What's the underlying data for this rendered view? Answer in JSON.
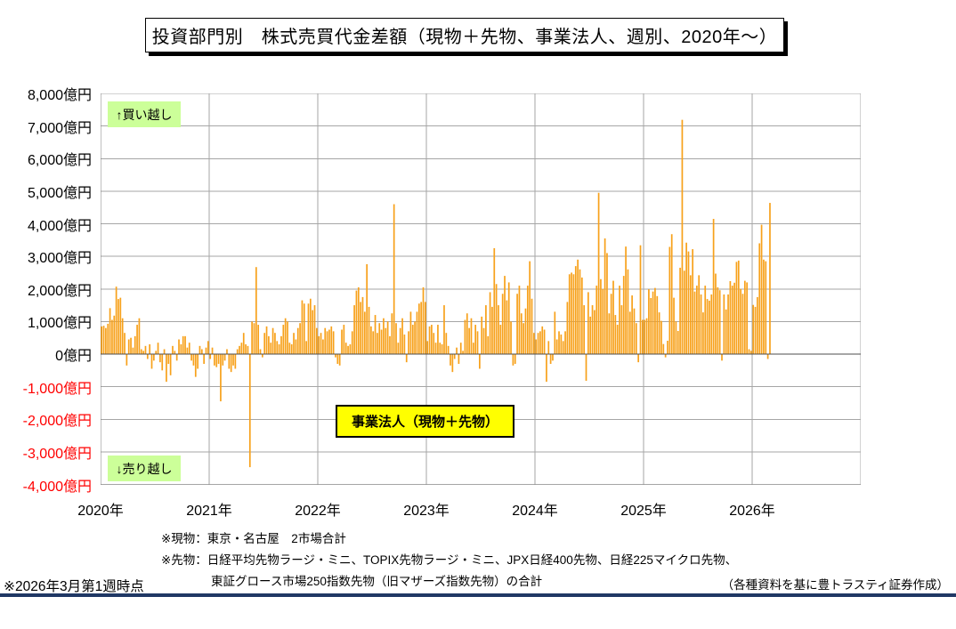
{
  "title": "投資部門別　株式売買代金差額（現物＋先物、事業法人、週別、2020年～）",
  "annotations": {
    "buy_over": "↑買い越し",
    "sell_over": "↓売り越し",
    "series_box": "事業法人（現物＋先物）"
  },
  "footnotes": {
    "line1": "※現物：東京・名古屋　2市場合計",
    "line2": "※先物：日経平均先物ラージ・ミニ、TOPIX先物ラージ・ミニ、JPX日経400先物、日経225マイクロ先物、",
    "line3": "東証グロース市場250指数先物（旧マザーズ指数先物）の合計"
  },
  "footer": {
    "as_of": "※2026年3月第1週時点",
    "credit": "（各種資料を基に豊トラスティ証券作成）"
  },
  "colors": {
    "bar": "#F7A11B",
    "gridline": "#A6A6A6",
    "zero_line": "#4D4D4D",
    "axis": "#808080",
    "negative_tick_label": "#FF0000",
    "positive_tick_label": "#000000",
    "note_green_bg": "#CCFF99",
    "series_box_bg": "#FFFF00",
    "bottom_rule": "#203864"
  },
  "chart_data": {
    "type": "bar",
    "title": "投資部門別　株式売買代金差額（現物＋先物、事業法人、週別、2020年～）",
    "unit": "億円",
    "ylim": [
      -4000,
      8000
    ],
    "ytick_interval": 1000,
    "grid": true,
    "legend_position": "none",
    "y_tick_labels": [
      "8,000億円",
      "7,000億円",
      "6,000億円",
      "5,000億円",
      "4,000億円",
      "3,000億円",
      "2,000億円",
      "1,000億円",
      "0億円",
      "-1,000億円",
      "-2,000億円",
      "-3,000億円",
      "-4,000億円"
    ],
    "x_year_labels": [
      "2020年",
      "2021年",
      "2022年",
      "2023年",
      "2024年",
      "2025年",
      "2026年"
    ],
    "x_axis_span_years": 7,
    "weeks_per_year": 52,
    "series_name": "事業法人（現物＋先物）",
    "values_by_year": {
      "2020": [
        850,
        870,
        800,
        930,
        1410,
        1050,
        1180,
        2070,
        1690,
        1730,
        1100,
        650,
        -350,
        450,
        500,
        200,
        550,
        900,
        1100,
        150,
        100,
        250,
        -150,
        300,
        -450,
        -200,
        100,
        350,
        -250,
        -500,
        150,
        -850,
        -300,
        -650,
        250,
        100,
        -200,
        450,
        300,
        550,
        550,
        200,
        350,
        -200,
        -350,
        -700,
        -450,
        250,
        150,
        -300,
        200,
        400
      ],
      "2021": [
        -150,
        200,
        -350,
        -400,
        -300,
        -1450,
        -350,
        -200,
        150,
        -450,
        -550,
        -350,
        -450,
        150,
        250,
        350,
        650,
        300,
        250,
        -3470,
        1000,
        950,
        2670,
        900,
        150,
        -100,
        650,
        850,
        550,
        350,
        800,
        650,
        400,
        300,
        550,
        900,
        1100,
        1000,
        350,
        300,
        650,
        450,
        800,
        950,
        1650,
        1550,
        400,
        1550,
        1700,
        1350,
        1500,
        800
      ],
      "2022": [
        550,
        650,
        450,
        800,
        700,
        750,
        850,
        700,
        -100,
        -300,
        -350,
        750,
        900,
        350,
        250,
        300,
        700,
        1500,
        1950,
        2050,
        1600,
        1750,
        1300,
        2760,
        1450,
        850,
        700,
        1200,
        650,
        950,
        750,
        1100,
        800,
        1000,
        550,
        1250,
        4600,
        950,
        350,
        800,
        1100,
        600,
        -250,
        700,
        1300,
        900,
        1000,
        1300,
        1550,
        1600,
        2050,
        1600
      ],
      "2023": [
        400,
        850,
        900,
        650,
        350,
        900,
        350,
        300,
        1500,
        650,
        250,
        -350,
        -550,
        -150,
        200,
        -300,
        350,
        100,
        1050,
        1250,
        800,
        1100,
        350,
        900,
        700,
        -450,
        1150,
        800,
        1500,
        550,
        1900,
        1450,
        3250,
        2150,
        1500,
        900,
        1850,
        2400,
        1650,
        2200,
        1000,
        -350,
        -300,
        1850,
        2100,
        1250,
        950,
        1400,
        2100,
        2850,
        1700,
        650
      ],
      "2024": [
        450,
        650,
        700,
        850,
        750,
        -850,
        400,
        -300,
        -200,
        1300,
        450,
        700,
        600,
        400,
        700,
        1600,
        2450,
        2500,
        2450,
        2700,
        2900,
        2600,
        2350,
        1500,
        -820,
        1900,
        1150,
        1500,
        1350,
        2100,
        4950,
        2300,
        2000,
        3550,
        3100,
        1250,
        1850,
        2250,
        1200,
        900,
        2100,
        1500,
        2400,
        3300,
        2600,
        1300,
        1800,
        1400,
        950,
        -250,
        3340,
        1050
      ],
      "2025": [
        1050,
        1100,
        1990,
        1720,
        1920,
        2030,
        1780,
        1280,
        1020,
        310,
        -100,
        410,
        3290,
        3680,
        1730,
        1000,
        710,
        2650,
        7190,
        2560,
        3420,
        3150,
        2420,
        3220,
        1920,
        2100,
        2420,
        1830,
        1280,
        2100,
        1690,
        1640,
        1830,
        4150,
        2470,
        2050,
        1960,
        -200,
        1830,
        1370,
        1830,
        2240,
        2100,
        2190,
        2830,
        2870,
        2000,
        1850,
        2250,
        2200,
        150,
        100
      ],
      "2026": [
        1510,
        1450,
        1750,
        3400,
        3970,
        2900,
        2850,
        -150,
        4640
      ]
    }
  }
}
